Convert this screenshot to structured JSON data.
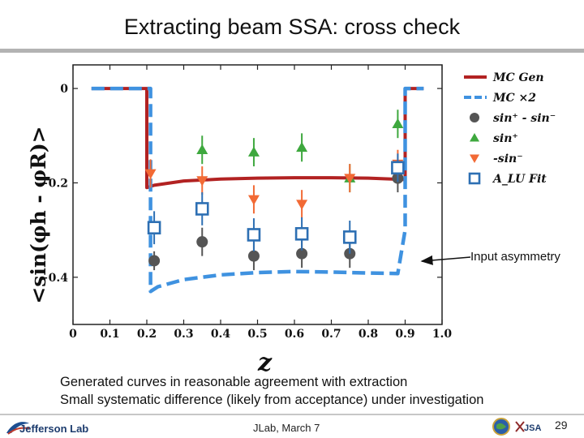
{
  "slide": {
    "title": "Extracting beam SSA: cross check",
    "annotation": "Input asymmetry",
    "body_lines": [
      "Generated curves in reasonable agreement with extraction",
      "Small systematic difference (likely from acceptance) under investigation"
    ],
    "footer_center": "JLab,  March 7",
    "page_number": "29",
    "logo_text": "Jefferson Lab",
    "footer_icons": [
      "globe-icon",
      "jsa-logo-icon"
    ],
    "footer_logo_text": "JSA"
  },
  "chart_data": {
    "type": "scatter",
    "xlabel": "z",
    "ylabel": "<sin(φh - φR)>",
    "xlim": [
      0,
      1.0
    ],
    "ylim": [
      -0.5,
      0.05
    ],
    "xticks": [
      "0",
      "0.1",
      "0.2",
      "0.3",
      "0.4",
      "0.5",
      "0.6",
      "0.7",
      "0.8",
      "0.9",
      "1.0"
    ],
    "yticks": [
      {
        "value": 0,
        "label": "0"
      },
      {
        "value": -0.2,
        "label": "−0.2"
      },
      {
        "value": -0.4,
        "label": "−0.4"
      }
    ],
    "legend_position": "right",
    "series": [
      {
        "key": "mcgen",
        "name": "MC Gen",
        "kind": "line",
        "color": "#b22222",
        "x": [
          0.05,
          0.2,
          0.2,
          0.22,
          0.3,
          0.4,
          0.5,
          0.6,
          0.7,
          0.8,
          0.9,
          0.9,
          0.95
        ],
        "y": [
          0,
          0,
          -0.21,
          -0.205,
          -0.196,
          -0.192,
          -0.19,
          -0.189,
          -0.189,
          -0.19,
          -0.193,
          0,
          0
        ]
      },
      {
        "key": "mcx2",
        "name": "MC ×2",
        "kind": "dashed",
        "color": "#3f92e0",
        "x": [
          0.05,
          0.21,
          0.21,
          0.23,
          0.3,
          0.4,
          0.5,
          0.6,
          0.7,
          0.8,
          0.88,
          0.88,
          0.9,
          0.9,
          0.95
        ],
        "y": [
          0,
          0,
          -0.43,
          -0.42,
          -0.405,
          -0.395,
          -0.39,
          -0.388,
          -0.389,
          -0.391,
          -0.392,
          -0.392,
          -0.3,
          0,
          0
        ]
      },
      {
        "key": "sinpm",
        "name": "sin⁺ - sin⁻",
        "kind": "circle",
        "color": "#555555",
        "x": [
          0.22,
          0.35,
          0.49,
          0.62,
          0.75,
          0.88
        ],
        "y": [
          -0.365,
          -0.325,
          -0.355,
          -0.35,
          -0.35,
          -0.19
        ],
        "err": [
          0.02,
          0.03,
          0.03,
          0.03,
          0.03,
          0.03
        ]
      },
      {
        "key": "sinp",
        "name": "sin⁺",
        "kind": "triangle-up",
        "color": "#3ea83e",
        "x": [
          0.35,
          0.49,
          0.62,
          0.75,
          0.88
        ],
        "y": [
          -0.13,
          -0.135,
          -0.125,
          -0.19,
          -0.075
        ],
        "err": [
          0.03,
          0.03,
          0.03,
          0.03,
          0.03
        ]
      },
      {
        "key": "msinm",
        "name": "-sin⁻",
        "kind": "triangle-down",
        "color": "#f26a35",
        "x": [
          0.21,
          0.35,
          0.49,
          0.62,
          0.75,
          0.88
        ],
        "y": [
          -0.18,
          -0.195,
          -0.235,
          -0.245,
          -0.19,
          -0.16
        ],
        "err": [
          0.03,
          0.03,
          0.03,
          0.03,
          0.03,
          0.03
        ]
      },
      {
        "key": "alu",
        "name": "A_LU Fit",
        "kind": "square",
        "color": "#2d6fb3",
        "x": [
          0.22,
          0.35,
          0.49,
          0.62,
          0.75,
          0.88
        ],
        "y": [
          -0.295,
          -0.255,
          -0.31,
          -0.308,
          -0.315,
          -0.168
        ],
        "err": [
          0.035,
          0.035,
          0.035,
          0.035,
          0.035,
          0.03
        ]
      }
    ]
  }
}
